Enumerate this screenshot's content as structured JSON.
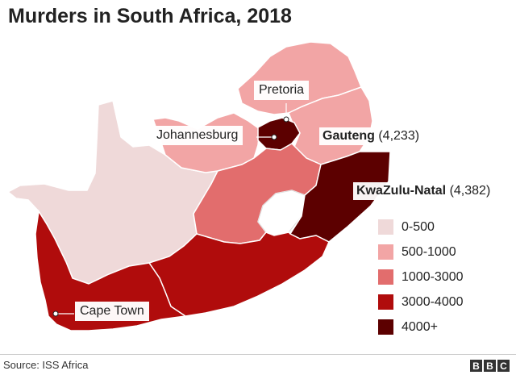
{
  "title": "Murders in South Africa, 2018",
  "source": "Source: ISS Africa",
  "logo_letters": [
    "B",
    "B",
    "C"
  ],
  "colors": {
    "0-500": "#efd9d9",
    "500-1000": "#f2a5a5",
    "1000-3000": "#e26d6d",
    "3000-4000": "#b00c0c",
    "4000+": "#5c0000",
    "border": "#ffffff"
  },
  "legend": [
    {
      "label": "0-500",
      "color": "#efd9d9"
    },
    {
      "label": "500-1000",
      "color": "#f2a5a5"
    },
    {
      "label": "1000-3000",
      "color": "#e26d6d"
    },
    {
      "label": "3000-4000",
      "color": "#b00c0c"
    },
    {
      "label": "4000+",
      "color": "#5c0000"
    }
  ],
  "cities": {
    "pretoria": "Pretoria",
    "johannesburg": "Johannesburg",
    "cape_town": "Cape Town"
  },
  "callouts": {
    "gauteng": {
      "name": "Gauteng",
      "value": "(4,233)"
    },
    "kwazulu_natal": {
      "name": "KwaZulu-Natal",
      "value": "(4,382)"
    }
  }
}
